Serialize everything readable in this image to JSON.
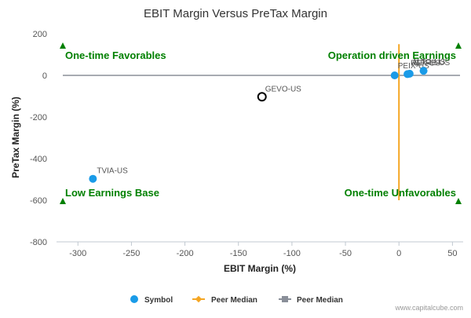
{
  "chart_data": {
    "type": "scatter",
    "title": "EBIT Margin Versus PreTax Margin",
    "xlabel": "EBIT Margin (%)",
    "ylabel": "PreTax Margin (%)",
    "xlim": [
      -320,
      60
    ],
    "ylim": [
      -800,
      200
    ],
    "xticks": [
      -300,
      -250,
      -200,
      -150,
      -100,
      -50,
      0,
      50
    ],
    "yticks": [
      -800,
      -600,
      -400,
      -200,
      0,
      200
    ],
    "grid": false,
    "legend_placement": "bottom",
    "series": [
      {
        "name": "Symbol",
        "color": "#1a9be8",
        "points": [
          {
            "label": "TVIA-US",
            "x": -286,
            "y": -497
          },
          {
            "label": "GEVO-US",
            "x": -128,
            "y": -103,
            "highlight": true
          },
          {
            "label": "PEIX-US",
            "x": -4,
            "y": 0
          },
          {
            "label": "REX-US",
            "x": 8,
            "y": 6
          },
          {
            "label": "ALTO-US",
            "x": 10,
            "y": 8
          },
          {
            "label": "GPRE-US",
            "x": 23,
            "y": 22
          }
        ]
      }
    ],
    "peer_median_x": {
      "name": "Peer Median",
      "value": 0,
      "color": "#f5a623"
    },
    "peer_median_y": {
      "name": "Peer Median",
      "value": 0,
      "color": "#8a8f99"
    },
    "quadrant_labels": {
      "top_left": "One-time Favorables",
      "top_right": "Operation driven Earnings",
      "bottom_left": "Low Earnings Base",
      "bottom_right": "One-time Unfavorables",
      "color": "#008000"
    },
    "credit": "www.capitalcube.com"
  }
}
